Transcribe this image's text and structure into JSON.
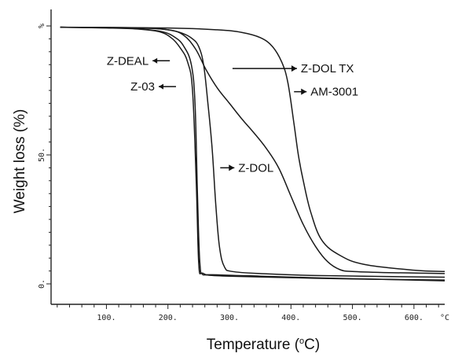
{
  "chart_data": {
    "type": "line",
    "xlabel_parts": {
      "main": "Temperature (",
      "sup": "o",
      "tail": "C)"
    },
    "ylabel": "Weight loss (%)",
    "xlim": [
      10,
      650
    ],
    "ylim": [
      0,
      100
    ],
    "x_tick_labels": [
      {
        "value": 100,
        "label": "100."
      },
      {
        "value": 200,
        "label": "200."
      },
      {
        "value": 300,
        "label": "300."
      },
      {
        "value": 400,
        "label": "400."
      },
      {
        "value": 500,
        "label": "500."
      },
      {
        "value": 600,
        "label": "600."
      },
      {
        "value": 650,
        "label": "°C"
      }
    ],
    "y_tick_labels": [
      {
        "value": 0,
        "label": "0."
      },
      {
        "value": 50,
        "label": "50."
      },
      {
        "value": 100,
        "label": "%"
      }
    ],
    "series": [
      {
        "name": "Z-DEAL",
        "x": [
          25,
          100,
          150,
          185,
          205,
          220,
          232,
          240,
          246,
          250,
          255,
          265,
          300,
          400,
          500,
          650
        ],
        "y": [
          99.5,
          99.2,
          98.8,
          97.8,
          95.5,
          91.5,
          86,
          75,
          40,
          8,
          4,
          3.4,
          3,
          2.4,
          1.9,
          1.5
        ]
      },
      {
        "name": "Z-03",
        "x": [
          25,
          100,
          150,
          190,
          212,
          226,
          238,
          244,
          248,
          252,
          258,
          280,
          350,
          450,
          650
        ],
        "y": [
          99.5,
          99.3,
          98.9,
          97.8,
          95.5,
          92,
          85,
          70,
          35,
          8,
          4,
          3.5,
          3,
          2.3,
          1.2
        ]
      },
      {
        "name": "Z-DOL",
        "x": [
          25,
          150,
          200,
          225,
          240,
          250,
          258,
          265,
          272,
          278,
          284,
          292,
          305,
          350,
          450,
          650
        ],
        "y": [
          99.5,
          99.2,
          98.5,
          97,
          95,
          92,
          85,
          70,
          52,
          30,
          14,
          6.5,
          4.8,
          4,
          3.2,
          2.6
        ]
      },
      {
        "name": "Z-DOL TX",
        "x": [
          25,
          150,
          200,
          225,
          245,
          262,
          280,
          300,
          320,
          340,
          360,
          380,
          400,
          420,
          440,
          460,
          480,
          500,
          550,
          650
        ],
        "y": [
          99.5,
          99.3,
          98.5,
          96.5,
          91,
          83,
          76,
          70,
          64,
          58.5,
          52.5,
          45,
          34,
          23,
          14.5,
          8.5,
          5.5,
          4.8,
          4.4,
          4
        ]
      },
      {
        "name": "AM-3001",
        "x": [
          25,
          200,
          280,
          320,
          350,
          370,
          385,
          395,
          405,
          412,
          420,
          432,
          450,
          480,
          520,
          600,
          650
        ],
        "y": [
          99.5,
          99.2,
          98.5,
          97.5,
          95.5,
          92,
          86,
          78,
          62,
          50,
          40,
          28,
          17,
          11,
          7.5,
          5.3,
          4.8
        ]
      }
    ],
    "annotations": [
      {
        "text": "Z-DEAL",
        "series": "Z-DEAL",
        "arrow": "left",
        "x": 175,
        "y": 86.5
      },
      {
        "text": "Z-03",
        "series": "Z-03",
        "arrow": "left",
        "x": 185,
        "y": 76.5
      },
      {
        "text": "Z-DOL TX",
        "series": "Z-DOL TX",
        "arrow": "right",
        "x": 305,
        "y": 83.5
      },
      {
        "text": "AM-3001",
        "series": "AM-3001",
        "arrow": "right",
        "x": 405,
        "y": 74.5
      },
      {
        "text": "Z-DOL",
        "series": "Z-DOL",
        "arrow": "right",
        "x": 285,
        "y": 45
      }
    ],
    "grid": false,
    "legend": "none"
  }
}
